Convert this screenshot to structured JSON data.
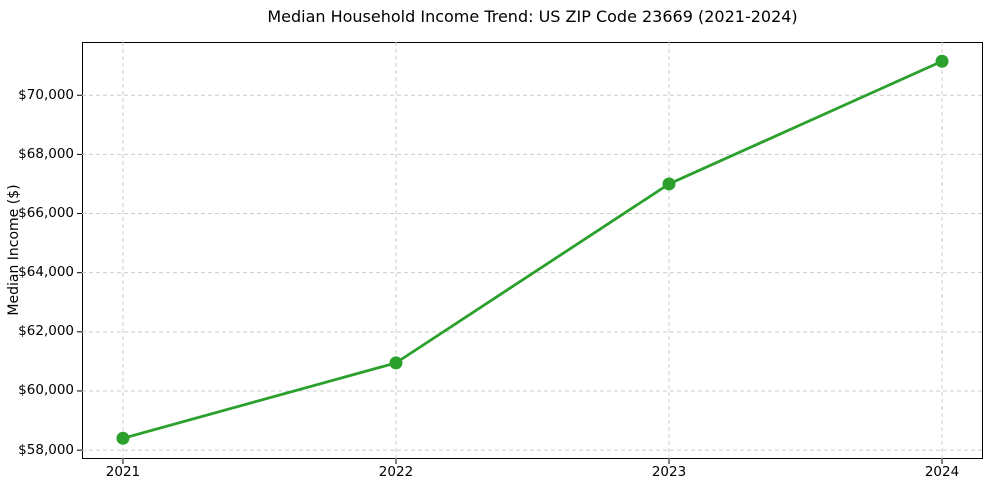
{
  "chart_data": {
    "type": "line",
    "title": "Median Household Income Trend: US ZIP Code 23669 (2021-2024)",
    "xlabel": "",
    "ylabel": "Median Income ($)",
    "categories": [
      "2021",
      "2022",
      "2023",
      "2024"
    ],
    "x": [
      2021,
      2022,
      2023,
      2024
    ],
    "series": [
      {
        "name": "Median Household Income",
        "values": [
          58400,
          60950,
          67000,
          71150
        ]
      }
    ],
    "yticks": [
      58000,
      60000,
      62000,
      64000,
      66000,
      68000,
      70000
    ],
    "ytick_labels": [
      "$58,000",
      "$60,000",
      "$62,000",
      "$64,000",
      "$66,000",
      "$68,000",
      "$70,000"
    ],
    "xlim": [
      2020.85,
      2024.15
    ],
    "ylim": [
      57700,
      71800
    ],
    "grid": true,
    "grid_style": "dashed",
    "legend": "none",
    "line_color": "#2ca02c",
    "marker": "circle",
    "grid_color": "#cccccc",
    "axis_color": "#000000",
    "background": "#ffffff"
  }
}
